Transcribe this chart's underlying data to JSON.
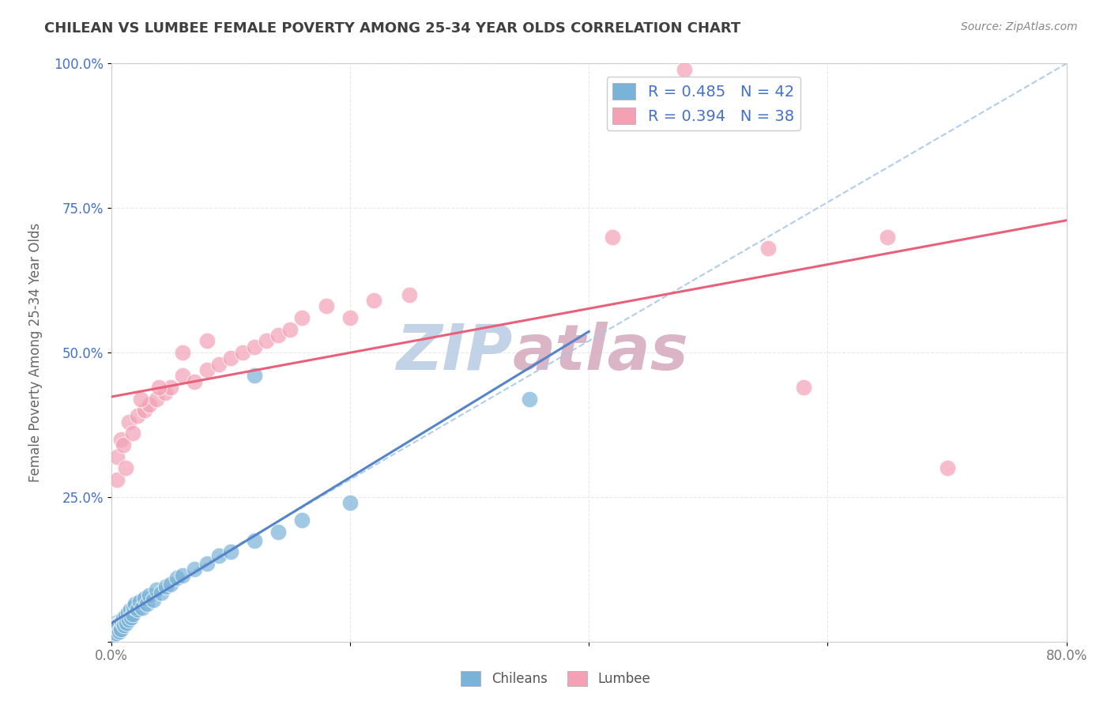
{
  "title": "CHILEAN VS LUMBEE FEMALE POVERTY AMONG 25-34 YEAR OLDS CORRELATION CHART",
  "source": "Source: ZipAtlas.com",
  "ylabel": "Female Poverty Among 25-34 Year Olds",
  "xlim": [
    0.0,
    0.8
  ],
  "ylim": [
    0.0,
    1.0
  ],
  "xticks": [
    0.0,
    0.2,
    0.4,
    0.6,
    0.8
  ],
  "xtick_labels": [
    "0.0%",
    "",
    "",
    "",
    "80.0%"
  ],
  "yticks": [
    0.0,
    0.25,
    0.5,
    0.75,
    1.0
  ],
  "ytick_labels": [
    "",
    "25.0%",
    "50.0%",
    "75.0%",
    "100.0%"
  ],
  "chilean_color": "#7ab3d9",
  "lumbee_color": "#f4a0b5",
  "chilean_trend_color": "#5585c8",
  "lumbee_trend_color": "#e8607a",
  "ref_line_color": "#a8c8e8",
  "watermark": "ZIPAtlas",
  "watermark_color_zip": "#b8cce4",
  "watermark_color_atlas": "#c8a8b8",
  "title_color": "#404040",
  "legend_color": "#4472c4",
  "background_color": "#ffffff",
  "grid_color": "#e8e8e8",
  "ytick_color": "#4472c4",
  "xtick_color": "#777777",
  "chilean_x": [
    0.002,
    0.003,
    0.004,
    0.005,
    0.006,
    0.007,
    0.008,
    0.009,
    0.01,
    0.011,
    0.012,
    0.013,
    0.014,
    0.015,
    0.016,
    0.017,
    0.018,
    0.019,
    0.02,
    0.022,
    0.024,
    0.026,
    0.028,
    0.03,
    0.032,
    0.035,
    0.038,
    0.042,
    0.046,
    0.05,
    0.055,
    0.06,
    0.07,
    0.08,
    0.09,
    0.1,
    0.12,
    0.14,
    0.16,
    0.2,
    0.35,
    0.12
  ],
  "chilean_y": [
    0.01,
    0.02,
    0.015,
    0.025,
    0.03,
    0.018,
    0.022,
    0.035,
    0.04,
    0.028,
    0.045,
    0.032,
    0.05,
    0.038,
    0.055,
    0.042,
    0.048,
    0.06,
    0.065,
    0.055,
    0.07,
    0.058,
    0.075,
    0.065,
    0.08,
    0.072,
    0.09,
    0.085,
    0.095,
    0.1,
    0.11,
    0.115,
    0.125,
    0.135,
    0.148,
    0.155,
    0.175,
    0.19,
    0.21,
    0.24,
    0.42,
    0.46
  ],
  "lumbee_x": [
    0.005,
    0.008,
    0.01,
    0.015,
    0.018,
    0.022,
    0.028,
    0.032,
    0.038,
    0.045,
    0.05,
    0.06,
    0.07,
    0.08,
    0.09,
    0.1,
    0.11,
    0.12,
    0.13,
    0.14,
    0.15,
    0.16,
    0.18,
    0.2,
    0.22,
    0.25,
    0.005,
    0.012,
    0.025,
    0.04,
    0.06,
    0.08,
    0.42,
    0.55,
    0.58,
    0.65,
    0.48,
    0.7
  ],
  "lumbee_y": [
    0.32,
    0.35,
    0.34,
    0.38,
    0.36,
    0.39,
    0.4,
    0.41,
    0.42,
    0.43,
    0.44,
    0.46,
    0.45,
    0.47,
    0.48,
    0.49,
    0.5,
    0.51,
    0.52,
    0.53,
    0.54,
    0.56,
    0.58,
    0.56,
    0.59,
    0.6,
    0.28,
    0.3,
    0.42,
    0.44,
    0.5,
    0.52,
    0.7,
    0.68,
    0.44,
    0.7,
    0.99,
    0.3
  ]
}
